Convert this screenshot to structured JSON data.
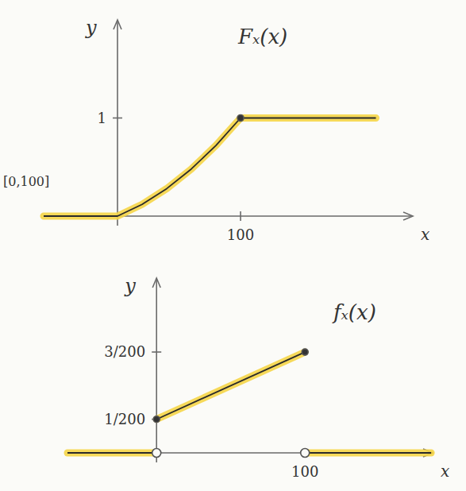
{
  "chart_data": [
    {
      "type": "line",
      "title": "Fₓ(x)",
      "x_label": "x",
      "y_label": "y",
      "annotation": "[0,100]",
      "xlim": [
        -60,
        240
      ],
      "ylim": [
        0,
        2
      ],
      "xticks": [
        100
      ],
      "yticks": [
        1
      ],
      "series": [
        {
          "x": [
            -60,
            0,
            20,
            40,
            60,
            80,
            100,
            210
          ],
          "values": [
            0,
            0,
            0.12,
            0.28,
            0.48,
            0.72,
            1,
            1
          ],
          "color": "#f5d547",
          "marker": "none",
          "line_style": "solid"
        },
        {
          "type": "scatter",
          "x": [
            100
          ],
          "values": [
            1
          ],
          "color": "#f5d547",
          "marker": "dot"
        }
      ]
    },
    {
      "type": "line",
      "title": "fₓ(x)",
      "x_label": "x",
      "y_label": "y",
      "xlim": [
        -60,
        186
      ],
      "ylim": [
        0,
        0.026
      ],
      "xticks": [
        100
      ],
      "yticks": [
        {
          "value": 0.005,
          "label": "1/200"
        },
        {
          "value": 0.015,
          "label": "3/200"
        }
      ],
      "series": [
        {
          "x": [
            -60,
            0
          ],
          "values": [
            0,
            0
          ],
          "color": "#f5d547",
          "marker": "none",
          "line_style": "solid"
        },
        {
          "x": [
            0,
            100
          ],
          "values": [
            0.005,
            0.015
          ],
          "color": "#f5d547",
          "marker": "dot",
          "line_style": "solid"
        },
        {
          "x": [
            100,
            185
          ],
          "values": [
            0,
            0
          ],
          "color": "#f5d547",
          "marker": "none",
          "line_style": "solid"
        },
        {
          "type": "scatter",
          "x": [
            0,
            100
          ],
          "values": [
            0,
            0
          ],
          "color": "#f5d547",
          "marker": "open-circle"
        }
      ]
    }
  ]
}
